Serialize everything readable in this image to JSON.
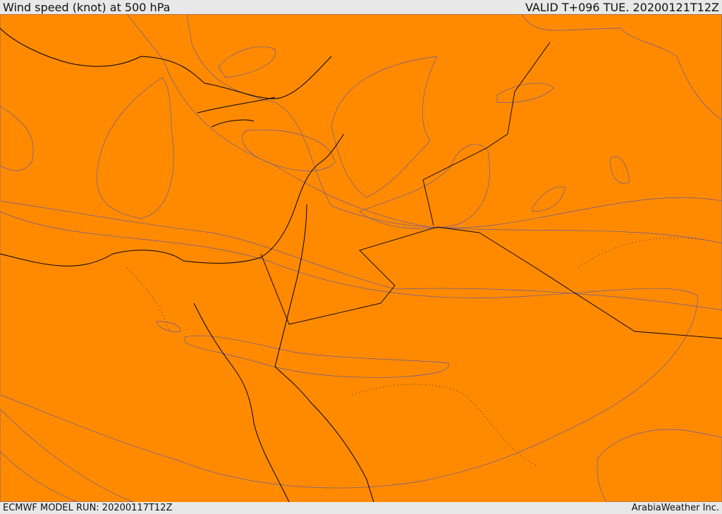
{
  "header": {
    "title": "Wind speed (knot) at 500 hPa",
    "valid": "VALID T+096 TUE. 20200121T12Z"
  },
  "footer": {
    "model_run": "ECMWF MODEL RUN: 20200117T12Z",
    "credit": "ArabiaWeather Inc."
  }
}
